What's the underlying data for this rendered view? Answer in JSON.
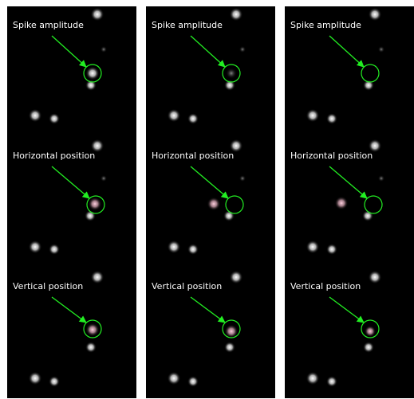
{
  "panels": [
    {
      "labels": [
        "Spike amplitude",
        "Horizontal position",
        "Vertical position"
      ]
    },
    {
      "labels": [
        "Spike amplitude",
        "Horizontal position",
        "Vertical position"
      ]
    },
    {
      "labels": [
        "Spike amplitude",
        "Horizontal position",
        "Vertical position"
      ]
    }
  ]
}
